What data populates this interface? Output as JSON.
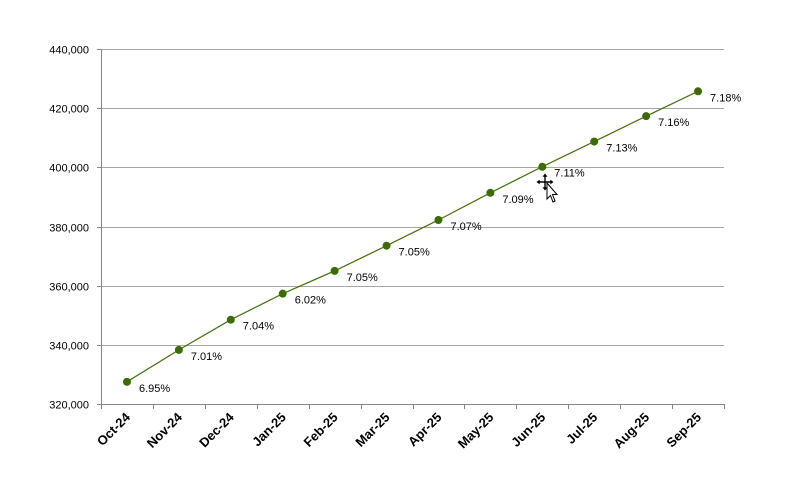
{
  "chart_data": {
    "type": "line",
    "categories": [
      "Oct-24",
      "Nov-24",
      "Dec-24",
      "Jan-25",
      "Feb-25",
      "Mar-25",
      "Apr-25",
      "May-25",
      "Jun-25",
      "Jul-25",
      "Aug-25",
      "Sep-25"
    ],
    "series": [
      {
        "values": [
          327500,
          338300,
          348500,
          357300,
          365000,
          373500,
          382200,
          391400,
          400200,
          408700,
          417300,
          425700
        ],
        "data_labels": [
          "6.95%",
          "7.01%",
          "7.04%",
          "6.02%",
          "7.05%",
          "7.05%",
          "7.07%",
          "7.09%",
          "7.11%",
          "7.13%",
          "7.16%",
          "7.18%"
        ],
        "color": "#4a7010",
        "marker_color": "#3d6b06"
      }
    ],
    "ylim": [
      320000,
      440000
    ],
    "yticks": [
      320000,
      340000,
      360000,
      380000,
      400000,
      420000,
      440000
    ],
    "ytick_labels": [
      "320,000",
      "340,000",
      "360,000",
      "380,000",
      "400,000",
      "420,000",
      "440,000"
    ],
    "grid": true,
    "legend": "none",
    "title": "",
    "xlabel": "",
    "ylabel": ""
  },
  "icons": {
    "cursor": "move-cursor-icon"
  }
}
